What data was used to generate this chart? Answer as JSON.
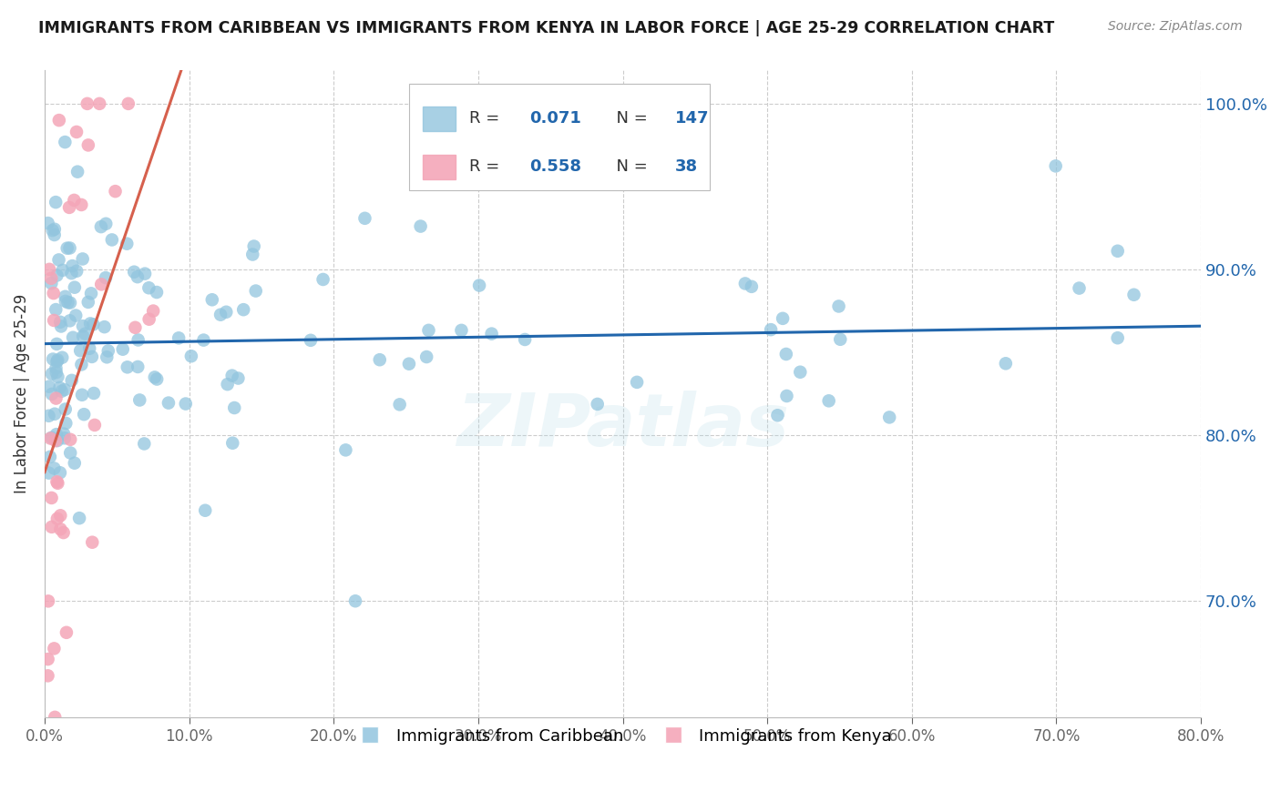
{
  "title": "IMMIGRANTS FROM CARIBBEAN VS IMMIGRANTS FROM KENYA IN LABOR FORCE | AGE 25-29 CORRELATION CHART",
  "source": "Source: ZipAtlas.com",
  "ylabel": "In Labor Force | Age 25-29",
  "xlim": [
    0.0,
    0.8
  ],
  "ylim": [
    0.63,
    1.02
  ],
  "yticks": [
    0.7,
    0.8,
    0.9,
    1.0
  ],
  "xticks": [
    0.0,
    0.1,
    0.2,
    0.3,
    0.4,
    0.5,
    0.6,
    0.7,
    0.8
  ],
  "blue_color": "#92c5de",
  "pink_color": "#f4a6b8",
  "blue_line_color": "#2166ac",
  "pink_line_color": "#d6604d",
  "text_blue": "#2166ac",
  "text_pink": "#d6604d",
  "label_caribbean": "Immigrants from Caribbean",
  "label_kenya": "Immigrants from Kenya",
  "watermark": "ZIPatlas",
  "legend_blue_R": "0.071",
  "legend_blue_N": "147",
  "legend_pink_R": "0.558",
  "legend_pink_N": "38"
}
